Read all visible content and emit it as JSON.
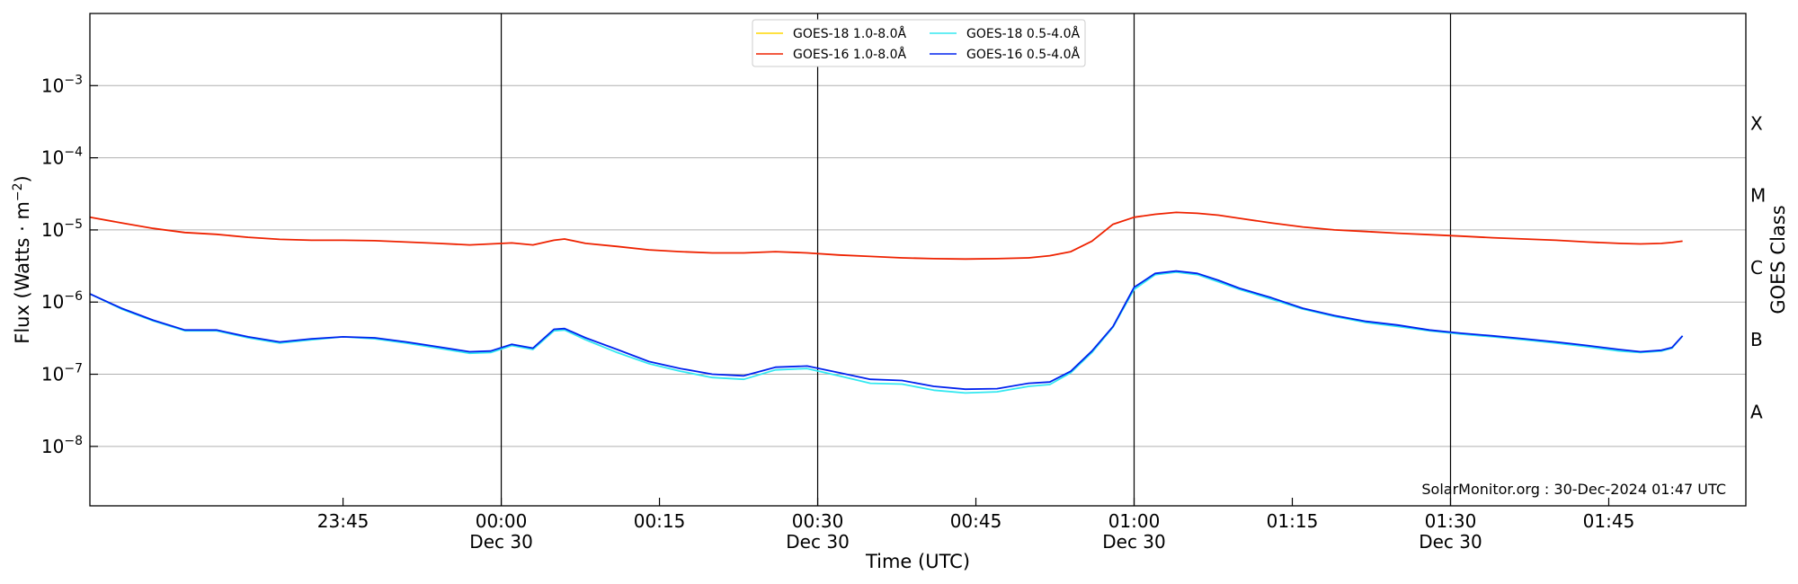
{
  "chart_data": {
    "type": "line",
    "title": "",
    "xlabel": "Time (UTC)",
    "ylabel_base": "Flux (Watts · m",
    "ylabel_exp": "−2",
    "ylabel_close": ")",
    "right_label": "GOES Class",
    "y_scale": "log",
    "ylim": [
      "1.5e-9",
      "1e-2"
    ],
    "xlim": [
      "23:21",
      "01:58"
    ],
    "grid": "horizontal",
    "legend_position": "top-center",
    "credit": "SolarMonitor.org : 30-Dec-2024 01:47 UTC",
    "y_ticks": [
      {
        "base": "10",
        "exp": "−3",
        "value": "1e-3"
      },
      {
        "base": "10",
        "exp": "−4",
        "value": "1e-4"
      },
      {
        "base": "10",
        "exp": "−5",
        "value": "1e-5"
      },
      {
        "base": "10",
        "exp": "−6",
        "value": "1e-6"
      },
      {
        "base": "10",
        "exp": "−7",
        "value": "1e-7"
      },
      {
        "base": "10",
        "exp": "−8",
        "value": "1e-8"
      }
    ],
    "x_ticks": [
      {
        "time": "23:45",
        "date": ""
      },
      {
        "time": "00:00",
        "date": "Dec 30"
      },
      {
        "time": "00:15",
        "date": ""
      },
      {
        "time": "00:30",
        "date": "Dec 30"
      },
      {
        "time": "00:45",
        "date": ""
      },
      {
        "time": "01:00",
        "date": "Dec 30"
      },
      {
        "time": "01:15",
        "date": ""
      },
      {
        "time": "01:30",
        "date": "Dec 30"
      },
      {
        "time": "01:45",
        "date": ""
      }
    ],
    "vertical_markers": [
      "00:00",
      "00:30",
      "01:00",
      "01:30"
    ],
    "goes_classes": [
      {
        "label": "X",
        "value": "3e-4"
      },
      {
        "label": "M",
        "value": "3e-5"
      },
      {
        "label": "C",
        "value": "3e-6"
      },
      {
        "label": "B",
        "value": "3e-7"
      },
      {
        "label": "A",
        "value": "3e-8"
      }
    ],
    "series": [
      {
        "name": "GOES-18 1.0-8.0Å",
        "color": "#ffd700",
        "points": []
      },
      {
        "name": "GOES-16 1.0-8.0Å",
        "color": "#ee2200",
        "points": [
          [
            "23:21",
            "1.5e-5"
          ],
          [
            "23:24",
            "1.25e-5"
          ],
          [
            "23:27",
            "1.05e-5"
          ],
          [
            "23:30",
            "9.2e-6"
          ],
          [
            "23:33",
            "8.7e-6"
          ],
          [
            "23:36",
            "7.9e-6"
          ],
          [
            "23:39",
            "7.4e-6"
          ],
          [
            "23:42",
            "7.2e-6"
          ],
          [
            "23:45",
            "7.2e-6"
          ],
          [
            "23:48",
            "7.1e-6"
          ],
          [
            "23:51",
            "6.8e-6"
          ],
          [
            "23:54",
            "6.5e-6"
          ],
          [
            "23:57",
            "6.2e-6"
          ],
          [
            "23:59",
            "6.4e-6"
          ],
          [
            "00:01",
            "6.6e-6"
          ],
          [
            "00:03",
            "6.2e-6"
          ],
          [
            "00:05",
            "7.2e-6"
          ],
          [
            "00:06",
            "7.5e-6"
          ],
          [
            "00:08",
            "6.5e-6"
          ],
          [
            "00:11",
            "5.9e-6"
          ],
          [
            "00:14",
            "5.3e-6"
          ],
          [
            "00:17",
            "5.0e-6"
          ],
          [
            "00:20",
            "4.8e-6"
          ],
          [
            "00:23",
            "4.8e-6"
          ],
          [
            "00:26",
            "5.0e-6"
          ],
          [
            "00:29",
            "4.8e-6"
          ],
          [
            "00:32",
            "4.5e-6"
          ],
          [
            "00:35",
            "4.3e-6"
          ],
          [
            "00:38",
            "4.1e-6"
          ],
          [
            "00:41",
            "4.0e-6"
          ],
          [
            "00:44",
            "3.95e-6"
          ],
          [
            "00:47",
            "4.0e-6"
          ],
          [
            "00:50",
            "4.1e-6"
          ],
          [
            "00:52",
            "4.4e-6"
          ],
          [
            "00:54",
            "5.0e-6"
          ],
          [
            "00:56",
            "7.0e-6"
          ],
          [
            "00:58",
            "1.2e-5"
          ],
          [
            "01:00",
            "1.5e-5"
          ],
          [
            "01:02",
            "1.65e-5"
          ],
          [
            "01:04",
            "1.75e-5"
          ],
          [
            "01:06",
            "1.7e-5"
          ],
          [
            "01:08",
            "1.6e-5"
          ],
          [
            "01:10",
            "1.45e-5"
          ],
          [
            "01:13",
            "1.25e-5"
          ],
          [
            "01:16",
            "1.1e-5"
          ],
          [
            "01:19",
            "1.0e-5"
          ],
          [
            "01:22",
            "9.5e-6"
          ],
          [
            "01:25",
            "9.0e-6"
          ],
          [
            "01:28",
            "8.6e-6"
          ],
          [
            "01:31",
            "8.2e-6"
          ],
          [
            "01:34",
            "7.8e-6"
          ],
          [
            "01:37",
            "7.5e-6"
          ],
          [
            "01:40",
            "7.2e-6"
          ],
          [
            "01:43",
            "6.8e-6"
          ],
          [
            "01:46",
            "6.5e-6"
          ],
          [
            "01:48",
            "6.4e-6"
          ],
          [
            "01:50",
            "6.5e-6"
          ],
          [
            "01:51",
            "6.7e-6"
          ],
          [
            "01:52",
            "7.0e-6"
          ]
        ]
      },
      {
        "name": "GOES-18 0.5-4.0Å",
        "color": "#33e8f0",
        "points": [
          [
            "23:21",
            "1.3e-6"
          ],
          [
            "23:24",
            "8.0e-7"
          ],
          [
            "23:27",
            "5.5e-7"
          ],
          [
            "23:30",
            "4.0e-7"
          ],
          [
            "23:33",
            "4.0e-7"
          ],
          [
            "23:36",
            "3.2e-7"
          ],
          [
            "23:39",
            "2.7e-7"
          ],
          [
            "23:42",
            "3.0e-7"
          ],
          [
            "23:45",
            "3.3e-7"
          ],
          [
            "23:48",
            "3.1e-7"
          ],
          [
            "23:51",
            "2.7e-7"
          ],
          [
            "23:54",
            "2.3e-7"
          ],
          [
            "23:57",
            "1.95e-7"
          ],
          [
            "23:59",
            "2.0e-7"
          ],
          [
            "00:01",
            "2.5e-7"
          ],
          [
            "00:03",
            "2.2e-7"
          ],
          [
            "00:05",
            "4.0e-7"
          ],
          [
            "00:06",
            "4.1e-7"
          ],
          [
            "00:08",
            "3.0e-7"
          ],
          [
            "00:11",
            "2.0e-7"
          ],
          [
            "00:14",
            "1.4e-7"
          ],
          [
            "00:17",
            "1.1e-7"
          ],
          [
            "00:20",
            "9.0e-8"
          ],
          [
            "00:23",
            "8.5e-8"
          ],
          [
            "00:26",
            "1.15e-7"
          ],
          [
            "00:29",
            "1.2e-7"
          ],
          [
            "00:32",
            "9.5e-8"
          ],
          [
            "00:35",
            "7.5e-8"
          ],
          [
            "00:38",
            "7.3e-8"
          ],
          [
            "00:41",
            "6.0e-8"
          ],
          [
            "00:44",
            "5.5e-8"
          ],
          [
            "00:47",
            "5.7e-8"
          ],
          [
            "00:50",
            "6.8e-8"
          ],
          [
            "00:52",
            "7.2e-8"
          ],
          [
            "00:54",
            "1.05e-7"
          ],
          [
            "00:56",
            "2.0e-7"
          ],
          [
            "00:58",
            "4.5e-7"
          ],
          [
            "01:00",
            "1.5e-6"
          ],
          [
            "01:02",
            "2.4e-6"
          ],
          [
            "01:04",
            "2.6e-6"
          ],
          [
            "01:06",
            "2.4e-6"
          ],
          [
            "01:08",
            "1.9e-6"
          ],
          [
            "01:10",
            "1.5e-6"
          ],
          [
            "01:13",
            "1.1e-6"
          ],
          [
            "01:16",
            "8.0e-7"
          ],
          [
            "01:19",
            "6.3e-7"
          ],
          [
            "01:22",
            "5.2e-7"
          ],
          [
            "01:25",
            "4.6e-7"
          ],
          [
            "01:28",
            "4.0e-7"
          ],
          [
            "01:31",
            "3.6e-7"
          ],
          [
            "01:34",
            "3.3e-7"
          ],
          [
            "01:37",
            "3.0e-7"
          ],
          [
            "01:40",
            "2.7e-7"
          ],
          [
            "01:43",
            "2.4e-7"
          ],
          [
            "01:46",
            "2.1e-7"
          ],
          [
            "01:48",
            "2.0e-7"
          ],
          [
            "01:50",
            "2.1e-7"
          ],
          [
            "01:51",
            "2.3e-7"
          ],
          [
            "01:52",
            "3.4e-7"
          ]
        ]
      },
      {
        "name": "GOES-16 0.5-4.0Å",
        "color": "#0022ee",
        "points": [
          [
            "23:21",
            "1.3e-6"
          ],
          [
            "23:24",
            "8.2e-7"
          ],
          [
            "23:27",
            "5.6e-7"
          ],
          [
            "23:30",
            "4.1e-7"
          ],
          [
            "23:33",
            "4.1e-7"
          ],
          [
            "23:36",
            "3.3e-7"
          ],
          [
            "23:39",
            "2.8e-7"
          ],
          [
            "23:42",
            "3.1e-7"
          ],
          [
            "23:45",
            "3.3e-7"
          ],
          [
            "23:48",
            "3.2e-7"
          ],
          [
            "23:51",
            "2.8e-7"
          ],
          [
            "23:54",
            "2.4e-7"
          ],
          [
            "23:57",
            "2.05e-7"
          ],
          [
            "23:59",
            "2.1e-7"
          ],
          [
            "00:01",
            "2.6e-7"
          ],
          [
            "00:03",
            "2.3e-7"
          ],
          [
            "00:05",
            "4.2e-7"
          ],
          [
            "00:06",
            "4.3e-7"
          ],
          [
            "00:08",
            "3.2e-7"
          ],
          [
            "00:11",
            "2.2e-7"
          ],
          [
            "00:14",
            "1.5e-7"
          ],
          [
            "00:17",
            "1.2e-7"
          ],
          [
            "00:20",
            "1.0e-7"
          ],
          [
            "00:23",
            "9.5e-8"
          ],
          [
            "00:26",
            "1.25e-7"
          ],
          [
            "00:29",
            "1.3e-7"
          ],
          [
            "00:32",
            "1.05e-7"
          ],
          [
            "00:35",
            "8.5e-8"
          ],
          [
            "00:38",
            "8.2e-8"
          ],
          [
            "00:41",
            "6.8e-8"
          ],
          [
            "00:44",
            "6.2e-8"
          ],
          [
            "00:47",
            "6.3e-8"
          ],
          [
            "00:50",
            "7.5e-8"
          ],
          [
            "00:52",
            "7.8e-8"
          ],
          [
            "00:54",
            "1.1e-7"
          ],
          [
            "00:56",
            "2.1e-7"
          ],
          [
            "00:58",
            "4.6e-7"
          ],
          [
            "01:00",
            "1.6e-6"
          ],
          [
            "01:02",
            "2.5e-6"
          ],
          [
            "01:04",
            "2.7e-6"
          ],
          [
            "01:06",
            "2.5e-6"
          ],
          [
            "01:08",
            "2.0e-6"
          ],
          [
            "01:10",
            "1.55e-6"
          ],
          [
            "01:13",
            "1.15e-6"
          ],
          [
            "01:16",
            "8.2e-7"
          ],
          [
            "01:19",
            "6.5e-7"
          ],
          [
            "01:22",
            "5.4e-7"
          ],
          [
            "01:25",
            "4.8e-7"
          ],
          [
            "01:28",
            "4.1e-7"
          ],
          [
            "01:31",
            "3.7e-7"
          ],
          [
            "01:34",
            "3.4e-7"
          ],
          [
            "01:37",
            "3.1e-7"
          ],
          [
            "01:40",
            "2.8e-7"
          ],
          [
            "01:43",
            "2.5e-7"
          ],
          [
            "01:46",
            "2.2e-7"
          ],
          [
            "01:48",
            "2.05e-7"
          ],
          [
            "01:50",
            "2.15e-7"
          ],
          [
            "01:51",
            "2.35e-7"
          ],
          [
            "01:52",
            "3.4e-7"
          ]
        ]
      }
    ]
  }
}
